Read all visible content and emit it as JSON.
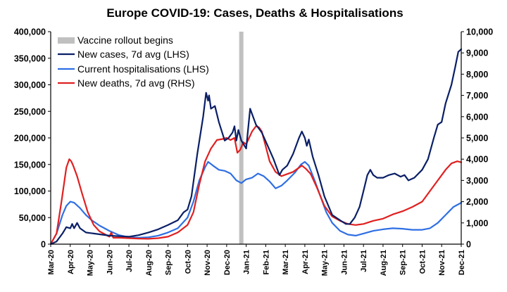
{
  "chart_data": {
    "type": "line",
    "title": "Europe COVID-19: Cases, Deaths & Hospitalisations",
    "x_tick_labels": [
      "Mar-20",
      "Apr-20",
      "May-20",
      "Jun-20",
      "Jul-20",
      "Aug-20",
      "Sep-20",
      "Oct-20",
      "Nov-20",
      "Dec-20",
      "Jan-21",
      "Feb-21",
      "Mar-21",
      "Apr-21",
      "May-21",
      "Jun-21",
      "Jul-21",
      "Aug-21",
      "Sep-21",
      "Oct-21",
      "Nov-21",
      "Dec-21"
    ],
    "left_axis": {
      "ylim": [
        0,
        400000
      ],
      "ticks": [
        "0",
        "50,000",
        "100,000",
        "150,000",
        "200,000",
        "250,000",
        "300,000",
        "350,000",
        "400,000"
      ]
    },
    "right_axis": {
      "ylim": [
        0,
        10000
      ],
      "ticks": [
        "0",
        "1,000",
        "2,000",
        "3,000",
        "4,000",
        "5,000",
        "6,000",
        "7,000",
        "8,000",
        "9,000",
        "10,000"
      ]
    },
    "annotation": {
      "label": "Vaccine rollout begins",
      "x": 9.75,
      "color": "#c0c0c0"
    },
    "legend_position": "top-left",
    "series": [
      {
        "name": "New cases, 7d avg (LHS)",
        "axis": "left",
        "color": "#0a1f66",
        "points": [
          [
            0,
            0
          ],
          [
            0.3,
            5000
          ],
          [
            0.6,
            20000
          ],
          [
            0.8,
            32000
          ],
          [
            1.0,
            30000
          ],
          [
            1.1,
            38000
          ],
          [
            1.2,
            30000
          ],
          [
            1.35,
            40000
          ],
          [
            1.5,
            30000
          ],
          [
            1.8,
            22000
          ],
          [
            2.2,
            20000
          ],
          [
            2.6,
            18000
          ],
          [
            3.0,
            16000
          ],
          [
            3.5,
            15000
          ],
          [
            4.0,
            14000
          ],
          [
            4.5,
            17000
          ],
          [
            5.0,
            22000
          ],
          [
            5.5,
            28000
          ],
          [
            6.0,
            36000
          ],
          [
            6.5,
            45000
          ],
          [
            6.8,
            60000
          ],
          [
            7.0,
            65000
          ],
          [
            7.2,
            90000
          ],
          [
            7.5,
            170000
          ],
          [
            7.8,
            240000
          ],
          [
            7.95,
            285000
          ],
          [
            8.05,
            270000
          ],
          [
            8.1,
            280000
          ],
          [
            8.2,
            255000
          ],
          [
            8.4,
            260000
          ],
          [
            8.6,
            230000
          ],
          [
            8.9,
            195000
          ],
          [
            9.1,
            200000
          ],
          [
            9.3,
            210000
          ],
          [
            9.4,
            222000
          ],
          [
            9.5,
            195000
          ],
          [
            9.6,
            215000
          ],
          [
            9.75,
            195000
          ],
          [
            10.0,
            180000
          ],
          [
            10.2,
            255000
          ],
          [
            10.5,
            225000
          ],
          [
            10.8,
            210000
          ],
          [
            11.1,
            185000
          ],
          [
            11.4,
            160000
          ],
          [
            11.7,
            130000
          ],
          [
            11.85,
            140000
          ],
          [
            12.1,
            148000
          ],
          [
            12.4,
            170000
          ],
          [
            12.7,
            200000
          ],
          [
            12.85,
            212000
          ],
          [
            13.0,
            200000
          ],
          [
            13.1,
            185000
          ],
          [
            13.2,
            197000
          ],
          [
            13.4,
            165000
          ],
          [
            13.7,
            130000
          ],
          [
            14.0,
            90000
          ],
          [
            14.4,
            55000
          ],
          [
            14.8,
            45000
          ],
          [
            15.1,
            38000
          ],
          [
            15.3,
            38000
          ],
          [
            15.55,
            50000
          ],
          [
            15.8,
            70000
          ],
          [
            16.0,
            100000
          ],
          [
            16.2,
            130000
          ],
          [
            16.35,
            140000
          ],
          [
            16.5,
            130000
          ],
          [
            16.7,
            125000
          ],
          [
            17.0,
            125000
          ],
          [
            17.3,
            130000
          ],
          [
            17.6,
            133000
          ],
          [
            17.9,
            127000
          ],
          [
            18.1,
            130000
          ],
          [
            18.3,
            120000
          ],
          [
            18.6,
            125000
          ],
          [
            19.0,
            140000
          ],
          [
            19.3,
            160000
          ],
          [
            19.6,
            200000
          ],
          [
            19.8,
            225000
          ],
          [
            20.0,
            230000
          ],
          [
            20.2,
            265000
          ],
          [
            20.5,
            300000
          ],
          [
            20.7,
            335000
          ],
          [
            20.85,
            362000
          ],
          [
            21.0,
            367000
          ]
        ]
      },
      {
        "name": "Current hospitalisations (LHS)",
        "axis": "left",
        "color": "#2f6fe4",
        "points": [
          [
            0,
            0
          ],
          [
            0.3,
            20000
          ],
          [
            0.6,
            55000
          ],
          [
            0.8,
            72000
          ],
          [
            1.0,
            80000
          ],
          [
            1.2,
            78000
          ],
          [
            1.5,
            68000
          ],
          [
            1.8,
            55000
          ],
          [
            2.1,
            45000
          ],
          [
            2.5,
            35000
          ],
          [
            3.0,
            25000
          ],
          [
            3.5,
            17000
          ],
          [
            4.0,
            13000
          ],
          [
            4.5,
            12000
          ],
          [
            5.0,
            13000
          ],
          [
            5.5,
            16000
          ],
          [
            6.0,
            22000
          ],
          [
            6.5,
            30000
          ],
          [
            7.0,
            50000
          ],
          [
            7.3,
            80000
          ],
          [
            7.6,
            120000
          ],
          [
            7.9,
            145000
          ],
          [
            8.05,
            155000
          ],
          [
            8.3,
            148000
          ],
          [
            8.6,
            140000
          ],
          [
            8.9,
            138000
          ],
          [
            9.2,
            133000
          ],
          [
            9.5,
            120000
          ],
          [
            9.75,
            115000
          ],
          [
            10.0,
            122000
          ],
          [
            10.3,
            125000
          ],
          [
            10.6,
            133000
          ],
          [
            10.9,
            128000
          ],
          [
            11.2,
            118000
          ],
          [
            11.5,
            105000
          ],
          [
            11.8,
            110000
          ],
          [
            12.1,
            120000
          ],
          [
            12.5,
            135000
          ],
          [
            12.8,
            150000
          ],
          [
            13.0,
            155000
          ],
          [
            13.2,
            148000
          ],
          [
            13.5,
            120000
          ],
          [
            13.8,
            90000
          ],
          [
            14.1,
            60000
          ],
          [
            14.4,
            40000
          ],
          [
            14.8,
            25000
          ],
          [
            15.2,
            18000
          ],
          [
            15.6,
            16000
          ],
          [
            16.0,
            20000
          ],
          [
            16.5,
            25000
          ],
          [
            17.0,
            28000
          ],
          [
            17.5,
            30000
          ],
          [
            18.0,
            29000
          ],
          [
            18.5,
            27000
          ],
          [
            19.0,
            27000
          ],
          [
            19.4,
            30000
          ],
          [
            19.8,
            40000
          ],
          [
            20.2,
            55000
          ],
          [
            20.6,
            70000
          ],
          [
            21.0,
            78000
          ]
        ]
      },
      {
        "name": "New deaths, 7d avg (RHS)",
        "axis": "right",
        "color": "#e02020",
        "points": [
          [
            0,
            0
          ],
          [
            0.3,
            500
          ],
          [
            0.55,
            2000
          ],
          [
            0.8,
            3600
          ],
          [
            0.95,
            4000
          ],
          [
            1.05,
            3900
          ],
          [
            1.15,
            3700
          ],
          [
            1.35,
            3200
          ],
          [
            1.6,
            2400
          ],
          [
            1.9,
            1500
          ],
          [
            2.2,
            900
          ],
          [
            2.5,
            600
          ],
          [
            2.8,
            450
          ],
          [
            3.0,
            350
          ],
          [
            3.1,
            550
          ],
          [
            3.2,
            300
          ],
          [
            3.5,
            300
          ],
          [
            4.0,
            280
          ],
          [
            4.5,
            260
          ],
          [
            5.0,
            250
          ],
          [
            5.5,
            280
          ],
          [
            6.0,
            350
          ],
          [
            6.5,
            550
          ],
          [
            7.0,
            900
          ],
          [
            7.3,
            1500
          ],
          [
            7.6,
            2800
          ],
          [
            7.9,
            3900
          ],
          [
            8.2,
            4500
          ],
          [
            8.5,
            4900
          ],
          [
            8.8,
            4950
          ],
          [
            9.0,
            5000
          ],
          [
            9.2,
            4900
          ],
          [
            9.4,
            5000
          ],
          [
            9.55,
            4300
          ],
          [
            9.7,
            4450
          ],
          [
            9.85,
            4800
          ],
          [
            10.0,
            4700
          ],
          [
            10.3,
            5300
          ],
          [
            10.5,
            5550
          ],
          [
            10.65,
            5500
          ],
          [
            10.8,
            5300
          ],
          [
            11.0,
            4600
          ],
          [
            11.2,
            3900
          ],
          [
            11.5,
            3400
          ],
          [
            11.8,
            3200
          ],
          [
            12.1,
            3300
          ],
          [
            12.4,
            3400
          ],
          [
            12.7,
            3600
          ],
          [
            12.85,
            3700
          ],
          [
            13.05,
            3550
          ],
          [
            13.3,
            3300
          ],
          [
            13.6,
            2700
          ],
          [
            14.0,
            1800
          ],
          [
            14.4,
            1300
          ],
          [
            14.8,
            1100
          ],
          [
            15.2,
            950
          ],
          [
            15.6,
            900
          ],
          [
            16.0,
            950
          ],
          [
            16.5,
            1100
          ],
          [
            17.0,
            1200
          ],
          [
            17.5,
            1400
          ],
          [
            18.0,
            1550
          ],
          [
            18.5,
            1750
          ],
          [
            19.0,
            2000
          ],
          [
            19.4,
            2500
          ],
          [
            19.8,
            3000
          ],
          [
            20.2,
            3500
          ],
          [
            20.5,
            3800
          ],
          [
            20.8,
            3900
          ],
          [
            21.0,
            3850
          ]
        ]
      }
    ]
  }
}
